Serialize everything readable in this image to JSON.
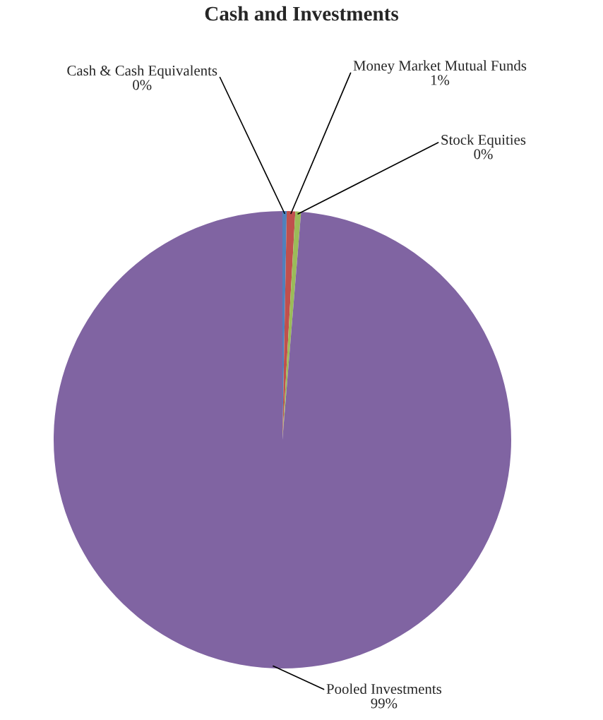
{
  "chart_data": {
    "type": "pie",
    "title": "Cash and Investments",
    "categories": [
      "Cash & Cash Equivalents",
      "Money Market Mutual Funds",
      "Stock Equities",
      "Pooled Investments"
    ],
    "values": [
      0.3,
      0.6,
      0.4,
      98.7
    ],
    "value_labels": [
      "0%",
      "1%",
      "0%",
      "99%"
    ],
    "colors": [
      "#4f81bd",
      "#c0504d",
      "#9bbb59",
      "#8064a2"
    ]
  }
}
